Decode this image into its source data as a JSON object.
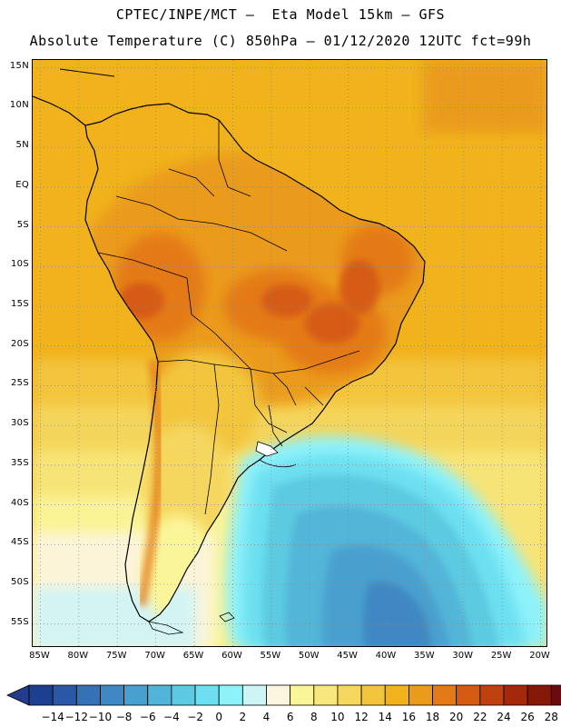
{
  "header": {
    "line1": "CPTEC/INPE/MCT –  Eta Model 15km – GFS",
    "line2": "Absolute Temperature (C) 850hPa – 01/12/2020 12UTC fct=99h"
  },
  "map": {
    "lat_labels": [
      "15N",
      "10N",
      "5N",
      "EQ",
      "5S",
      "10S",
      "15S",
      "20S",
      "25S",
      "30S",
      "35S",
      "40S",
      "45S",
      "50S",
      "55S"
    ],
    "lon_labels": [
      "85W",
      "80W",
      "75W",
      "70W",
      "65W",
      "60W",
      "55W",
      "50W",
      "45W",
      "40W",
      "35W",
      "30W",
      "25W",
      "20W"
    ],
    "lat_range": [
      16,
      -58
    ],
    "lon_range": [
      -86,
      -19
    ]
  },
  "colorbar": {
    "labels": [
      "-14",
      "-12",
      "-10",
      "-8",
      "-6",
      "-4",
      "-2",
      "0",
      "2",
      "4",
      "6",
      "8",
      "10",
      "12",
      "14",
      "16",
      "18",
      "20",
      "22",
      "24",
      "26",
      "28"
    ],
    "colors": [
      "#1d3f8f",
      "#2a58a6",
      "#3571b5",
      "#3f88c3",
      "#49a0cf",
      "#52b5d8",
      "#5ccbe2",
      "#6cdff0",
      "#8ef2fb",
      "#cff4f6",
      "#fdf5e0",
      "#fbf59a",
      "#f8e77c",
      "#f5d75e",
      "#f3c53d",
      "#f1b21c",
      "#eb9b1a",
      "#e47a16",
      "#d65b12",
      "#c1400f",
      "#a5280c",
      "#861808",
      "#6a0b10"
    ],
    "low_arrow_color": "#243c8c",
    "high_arrow_color": "#5c0828"
  }
}
